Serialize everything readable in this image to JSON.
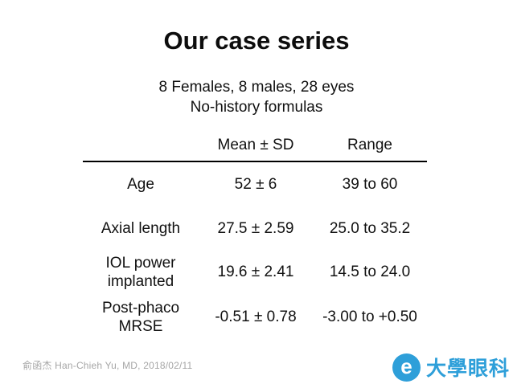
{
  "title": "Our case series",
  "subtitle_line1": "8 Females, 8 males, 28 eyes",
  "subtitle_line2": "No-history formulas",
  "table": {
    "headers": [
      "",
      "Mean ± SD",
      "Range"
    ],
    "rows": [
      {
        "label": "Age",
        "mean_sd": "52 ± 6",
        "range": "39 to 60"
      },
      {
        "label": "Axial length",
        "mean_sd": "27.5 ± 2.59",
        "range": "25.0 to 35.2"
      },
      {
        "label": "IOL power implanted",
        "mean_sd": "19.6 ± 2.41",
        "range": "14.5 to 24.0"
      },
      {
        "label": "Post-phaco MRSE",
        "mean_sd": "-0.51 ± 0.78",
        "range": "-3.00 to +0.50"
      }
    ]
  },
  "footer": "俞函杰 Han-Chieh Yu, MD, 2018/02/11",
  "logo": {
    "icon_letter": "e",
    "text": "大學眼科",
    "brand_color": "#2e9fd9"
  }
}
